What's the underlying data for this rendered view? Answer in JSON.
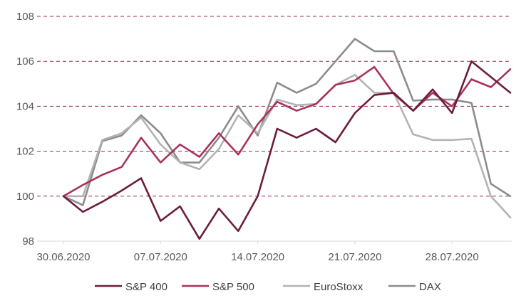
{
  "chart_data": {
    "type": "line",
    "title": "",
    "xlabel": "",
    "ylabel": "",
    "ylim": [
      98,
      108
    ],
    "yticks": [
      98,
      100,
      102,
      104,
      106,
      108
    ],
    "grid": "horizontal dashed",
    "legend_position": "bottom",
    "x": [
      "30.06.2020",
      "01.07.2020",
      "02.07.2020",
      "03.07.2020",
      "06.07.2020",
      "07.07.2020",
      "08.07.2020",
      "09.07.2020",
      "10.07.2020",
      "13.07.2020",
      "14.07.2020",
      "15.07.2020",
      "16.07.2020",
      "17.07.2020",
      "20.07.2020",
      "21.07.2020",
      "22.07.2020",
      "23.07.2020",
      "24.07.2020",
      "27.07.2020",
      "28.07.2020",
      "29.07.2020",
      "30.07.2020",
      "31.07.2020"
    ],
    "x_tick_labels": [
      "30.06.2020",
      "07.07.2020",
      "14.07.2020",
      "21.07.2020",
      "28.07.2020"
    ],
    "series": [
      {
        "name": "S&P 400",
        "color": "#6b1d3d",
        "values": [
          100.0,
          99.3,
          99.75,
          100.25,
          100.8,
          98.9,
          99.55,
          98.1,
          99.45,
          98.45,
          100.0,
          103.0,
          102.6,
          103.0,
          102.4,
          103.7,
          104.5,
          104.6,
          103.8,
          104.75,
          103.7,
          106.0,
          105.3,
          104.6
        ]
      },
      {
        "name": "S&P 500",
        "color": "#a8325e",
        "values": [
          100.0,
          100.5,
          100.95,
          101.3,
          102.6,
          101.5,
          102.3,
          101.75,
          102.8,
          101.85,
          103.2,
          104.2,
          103.8,
          104.1,
          104.95,
          105.15,
          105.75,
          104.55,
          103.8,
          104.6,
          104.0,
          105.2,
          104.85,
          105.65
        ]
      },
      {
        "name": "EuroStoxx",
        "color": "#b3b3b3",
        "values": [
          100.0,
          100.0,
          102.5,
          102.8,
          103.5,
          102.3,
          101.5,
          101.2,
          102.1,
          103.6,
          102.8,
          104.3,
          104.05,
          104.1,
          104.95,
          105.4,
          104.6,
          104.6,
          102.75,
          102.5,
          102.5,
          102.55,
          100.0,
          99.05
        ]
      },
      {
        "name": "DAX",
        "color": "#8c8c8c",
        "values": [
          100.0,
          99.6,
          102.45,
          102.7,
          103.6,
          102.8,
          101.5,
          101.5,
          102.6,
          104.0,
          102.7,
          105.05,
          104.6,
          105.0,
          106.0,
          107.0,
          106.45,
          106.45,
          104.25,
          104.3,
          104.3,
          104.15,
          100.55,
          100.0
        ]
      }
    ]
  }
}
